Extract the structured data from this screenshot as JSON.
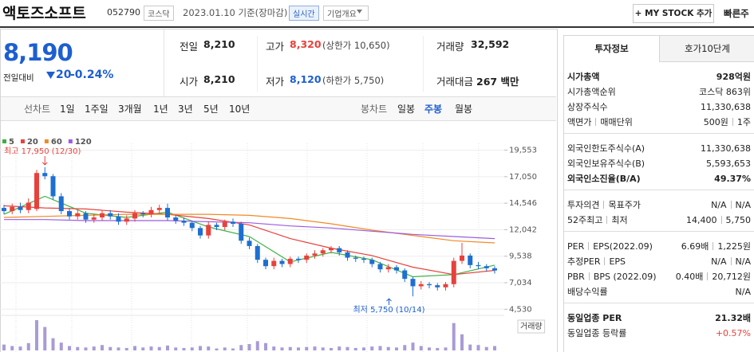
{
  "header": {
    "name": "액토즈소프트",
    "code": "052790",
    "market": "코스닥",
    "date": "2023.01.10 기준(장마감)",
    "realtime": "실시간",
    "company": "기업개요",
    "mystock": "+ MY STOCK 추가",
    "quick": "빠른주"
  },
  "price": {
    "value": "8,190",
    "change_label": "전일대비",
    "change": "20",
    "change_pct": "-0.24%"
  },
  "quote": {
    "rows": [
      [
        {
          "label": "전일",
          "value": "8,210"
        },
        {
          "label": "고가",
          "value": "8,320",
          "note": "(상한가 10,650)"
        },
        {
          "label": "거래량",
          "value": "32,592"
        }
      ],
      [
        {
          "label": "시가",
          "value": "8,210"
        },
        {
          "label": "저가",
          "value": "8,120",
          "note": "(하한가 5,750)"
        },
        {
          "label": "거래대금",
          "value": "267 백만"
        }
      ]
    ]
  },
  "tabs": {
    "line_label": "선차트",
    "line": [
      "1일",
      "1주일",
      "3개월",
      "1년",
      "3년",
      "5년",
      "10년"
    ],
    "candle_label": "봉차트",
    "candle": [
      "일봉",
      "주봉",
      "월봉"
    ]
  },
  "chart_data": {
    "type": "candlestick",
    "up_color": "#e8413c",
    "down_color": "#1d6fd1",
    "volume_color": "#a99bd6",
    "volume_label": "거래량",
    "categories": [
      null,
      null,
      null,
      null,
      null,
      null,
      null,
      null,
      null,
      null,
      null,
      null,
      null,
      null,
      null,
      null,
      null,
      null,
      null,
      null,
      null,
      null,
      null,
      null,
      null,
      null,
      null,
      null,
      null,
      null,
      null,
      null,
      null,
      null,
      null,
      null,
      null,
      null,
      null,
      null,
      null,
      null,
      null,
      null,
      null,
      null,
      null,
      null,
      null,
      null,
      null,
      null,
      null,
      null,
      null,
      null,
      null,
      null,
      null,
      null,
      null
    ],
    "open": [
      14100,
      13800,
      14200,
      13900,
      14000,
      17400,
      17100,
      15200,
      13800,
      13300,
      13600,
      13000,
      13200,
      13600,
      13300,
      12800,
      13100,
      13600,
      13500,
      13900,
      14100,
      13200,
      12900,
      12700,
      12200,
      11500,
      12500,
      12300,
      12800,
      12600,
      11000,
      10500,
      9200,
      8600,
      9100,
      8800,
      9300,
      9200,
      9600,
      9800,
      10100,
      10300,
      9900,
      9400,
      9300,
      9200,
      8800,
      8300,
      8500,
      8200,
      7400,
      6700,
      6900,
      6800,
      6600,
      6900,
      9100,
      9600,
      8700,
      8600,
      8400
    ],
    "high": [
      14400,
      14500,
      14600,
      15000,
      17700,
      17950,
      17300,
      15500,
      14100,
      13900,
      13800,
      13500,
      13900,
      13900,
      13600,
      13400,
      13900,
      13800,
      14200,
      14400,
      14500,
      13400,
      13200,
      12900,
      12400,
      12800,
      12700,
      13000,
      13100,
      12800,
      11300,
      10700,
      9400,
      9400,
      9300,
      9500,
      9500,
      9800,
      10100,
      10300,
      10500,
      10500,
      10100,
      9600,
      9500,
      9400,
      9000,
      8800,
      8700,
      8400,
      7600,
      7200,
      7100,
      7000,
      7100,
      9400,
      10800,
      9800,
      9000,
      8800,
      8600
    ],
    "low": [
      13500,
      13500,
      13600,
      13600,
      13800,
      16800,
      14900,
      13500,
      13000,
      13000,
      12700,
      12700,
      12900,
      13000,
      12500,
      12500,
      12800,
      13200,
      13200,
      13600,
      12900,
      12600,
      12400,
      11900,
      11200,
      11200,
      12000,
      12000,
      12300,
      10700,
      10200,
      8900,
      8300,
      8300,
      8500,
      8500,
      8900,
      8900,
      9300,
      9500,
      9800,
      9600,
      9100,
      9000,
      8900,
      8500,
      8000,
      8000,
      7900,
      7100,
      5750,
      6400,
      6500,
      6300,
      6300,
      6600,
      8800,
      8400,
      8300,
      8100,
      7900
    ],
    "close": [
      13800,
      14200,
      13900,
      14600,
      17400,
      17100,
      15200,
      13800,
      13300,
      13600,
      13000,
      13200,
      13600,
      13300,
      12800,
      13100,
      13600,
      13500,
      13900,
      14100,
      13200,
      12900,
      12700,
      12200,
      11500,
      12500,
      12300,
      12800,
      12600,
      11000,
      10500,
      9200,
      8600,
      9100,
      8800,
      9300,
      9200,
      9600,
      9800,
      10100,
      10300,
      9900,
      9400,
      9300,
      9200,
      8800,
      8300,
      8500,
      8200,
      7400,
      6700,
      6900,
      6800,
      6600,
      6900,
      9100,
      9600,
      8700,
      8600,
      8400,
      8190
    ],
    "volume": [
      120000,
      90000,
      80000,
      150000,
      620000,
      480000,
      250000,
      160000,
      90000,
      70000,
      60000,
      80000,
      110000,
      70000,
      60000,
      50000,
      90000,
      60000,
      80000,
      70000,
      100000,
      60000,
      50000,
      60000,
      90000,
      80000,
      40000,
      60000,
      40000,
      110000,
      130000,
      190000,
      150000,
      80000,
      60000,
      70000,
      60000,
      70000,
      80000,
      60000,
      50000,
      80000,
      70000,
      50000,
      60000,
      80000,
      90000,
      70000,
      60000,
      110000,
      160000,
      90000,
      60000,
      50000,
      60000,
      560000,
      330000,
      120000,
      110000,
      70000,
      90000
    ],
    "series": [
      {
        "name": "5",
        "color": "#3cb043",
        "x": [
          0,
          5,
          10,
          15,
          20,
          25,
          30,
          35,
          40,
          45,
          50,
          55,
          60
        ],
        "values": [
          13500,
          15200,
          13600,
          13200,
          13700,
          12300,
          11400,
          9000,
          9900,
          9200,
          7600,
          7800,
          8700
        ]
      },
      {
        "name": "20",
        "color": "#e8413c",
        "x": [
          0,
          5,
          10,
          15,
          20,
          25,
          30,
          35,
          40,
          45,
          50,
          55,
          60
        ],
        "values": [
          14300,
          14100,
          14000,
          13700,
          13500,
          13100,
          12500,
          11200,
          10300,
          9600,
          8500,
          7800,
          8200
        ]
      },
      {
        "name": "60",
        "color": "#f08a24",
        "x": [
          0,
          5,
          10,
          15,
          20,
          25,
          30,
          35,
          40,
          45,
          50,
          55,
          60
        ],
        "values": [
          13200,
          13300,
          13400,
          13500,
          13500,
          13500,
          13400,
          13100,
          12600,
          12000,
          11500,
          11000,
          10800
        ]
      },
      {
        "name": "120",
        "color": "#9c5ce0",
        "x": [
          0,
          5,
          10,
          15,
          20,
          25,
          30,
          35,
          40,
          45,
          50,
          55,
          60
        ],
        "values": [
          13000,
          13000,
          12900,
          12900,
          12900,
          12800,
          12700,
          12400,
          12200,
          11900,
          11600,
          11400,
          11200
        ]
      }
    ],
    "annotations": [
      "최고 17,950 (12/30)",
      "최저 5,750 (10/14)"
    ],
    "ylim": [
      3800,
      20200
    ],
    "yticks": [
      {
        "value": 19553,
        "label": "19,553"
      },
      {
        "value": 17050,
        "label": "17,050"
      },
      {
        "value": 14546,
        "label": "14,546"
      },
      {
        "value": 12042,
        "label": "12,042"
      },
      {
        "value": 9538,
        "label": "9,538"
      },
      {
        "value": 7034,
        "label": "7,034"
      },
      {
        "value": 4530,
        "label": "4,530"
      }
    ],
    "grid": true
  },
  "info": {
    "tabs": [
      "투자정보",
      "호가10단계"
    ],
    "sections": [
      [
        {
          "label": [
            "시가총액"
          ],
          "value": [
            "928억원"
          ],
          "strong": true
        },
        {
          "label": [
            "시가총액순위"
          ],
          "value": [
            "코스닥 863위"
          ]
        },
        {
          "label": [
            "상장주식수"
          ],
          "value": [
            "11,330,638"
          ]
        },
        {
          "label": [
            "액면가",
            "매매단위"
          ],
          "value": [
            "500원",
            "1주"
          ]
        }
      ],
      [
        {
          "label": [
            "외국인한도주식수(A)"
          ],
          "value": [
            "11,330,638"
          ]
        },
        {
          "label": [
            "외국인보유주식수(B)"
          ],
          "value": [
            "5,593,653"
          ]
        },
        {
          "label": [
            "외국인소진율(B/A)"
          ],
          "value": [
            "49.37%"
          ],
          "strong": true
        }
      ],
      [
        {
          "label": [
            "투자의견",
            "목표주가"
          ],
          "value": [
            "N/A",
            "N/A"
          ]
        },
        {
          "label": [
            "52주최고",
            "최저"
          ],
          "value": [
            "14,400",
            "5,750"
          ]
        }
      ],
      [
        {
          "label": [
            "PER",
            "EPS(2022.09)"
          ],
          "value": [
            "6.69배",
            "1,225원"
          ]
        },
        {
          "label": [
            "추정PER",
            "EPS"
          ],
          "value": [
            "N/A",
            "N/A"
          ]
        },
        {
          "label": [
            "PBR",
            "BPS (2022.09)"
          ],
          "value": [
            "0.40배",
            "20,712원"
          ]
        },
        {
          "label": [
            "배당수익률"
          ],
          "value": [
            "N/A"
          ]
        }
      ],
      [
        {
          "label": [
            "동일업종 PER"
          ],
          "value": [
            "21.32배"
          ],
          "strong": true
        },
        {
          "label": [
            "동일업종 등락률"
          ],
          "value": [
            "+0.57%"
          ],
          "color": "#e8413c"
        }
      ]
    ]
  }
}
